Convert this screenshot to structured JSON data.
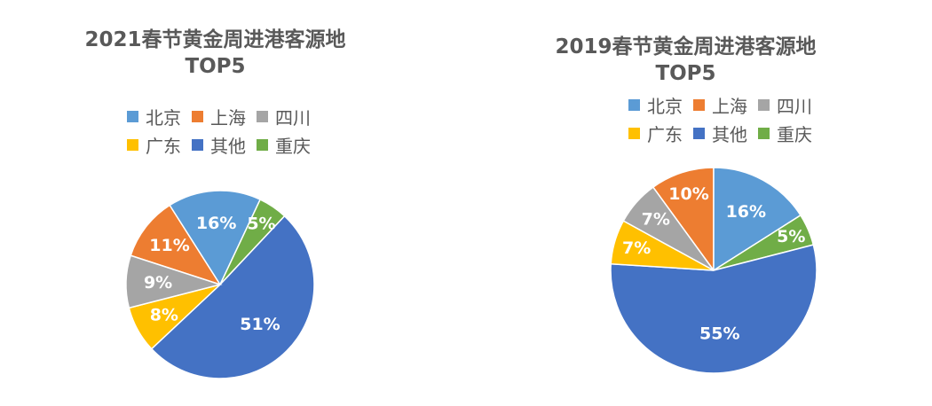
{
  "colors": {
    "北京": "#5B9BD5",
    "上海": "#ED7D31",
    "四川": "#A5A5A5",
    "广东": "#FFC000",
    "其他": "#4472C4",
    "重庆": "#70AD47"
  },
  "legend_rows": [
    [
      "北京",
      "上海",
      "四川"
    ],
    [
      "广东",
      "其他",
      "重庆"
    ]
  ],
  "chart_data": [
    {
      "type": "pie",
      "title_line1": "2021春节黄金周进港客源地",
      "title_line2": "TOP5",
      "legend": [
        "北京",
        "上海",
        "四川",
        "广东",
        "其他",
        "重庆"
      ],
      "slices": [
        {
          "label": "上海",
          "value": 11,
          "text": "11%"
        },
        {
          "label": "北京",
          "value": 16,
          "text": "16%"
        },
        {
          "label": "重庆",
          "value": 5,
          "text": "5%"
        },
        {
          "label": "其他",
          "value": 51,
          "text": "51%"
        },
        {
          "label": "广东",
          "value": 8,
          "text": "8%"
        },
        {
          "label": "四川",
          "value": 9,
          "text": "9%"
        }
      ]
    },
    {
      "type": "pie",
      "title_line1": "2019春节黄金周进港客源地",
      "title_line2": "TOP5",
      "legend": [
        "北京",
        "上海",
        "四川",
        "广东",
        "其他",
        "重庆"
      ],
      "slices": [
        {
          "label": "上海",
          "value": 10,
          "text": "10%"
        },
        {
          "label": "北京",
          "value": 16,
          "text": "16%"
        },
        {
          "label": "重庆",
          "value": 5,
          "text": "5%"
        },
        {
          "label": "其他",
          "value": 55,
          "text": "55%"
        },
        {
          "label": "广东",
          "value": 7,
          "text": "7%"
        },
        {
          "label": "四川",
          "value": 7,
          "text": "7%"
        }
      ]
    }
  ]
}
